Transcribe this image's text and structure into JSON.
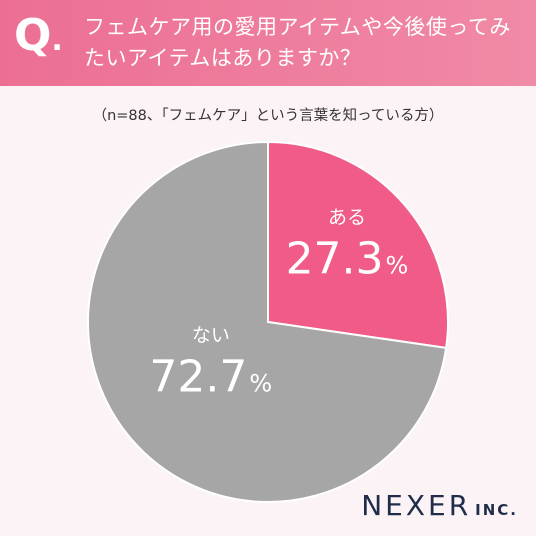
{
  "header": {
    "mark": "Q",
    "mark_dot": ".",
    "question": "フェムケア用の愛用アイテムや今後使ってみたいアイテムはありますか？",
    "color": "#ec6f93"
  },
  "subtitle": "（n=88、「フェムケア」という言葉を知っている方）",
  "chart_data": {
    "type": "pie",
    "title": "",
    "slices": [
      {
        "label": "ある",
        "value": 27.3,
        "display": "27.3",
        "color": "#f05b87"
      },
      {
        "label": "ない",
        "value": 72.7,
        "display": "72.7",
        "color": "#a6a6a6"
      }
    ],
    "unit": "%",
    "start": "top",
    "direction": "clockwise"
  },
  "logo": {
    "name": "NEXER",
    "suffix": "INC."
  }
}
